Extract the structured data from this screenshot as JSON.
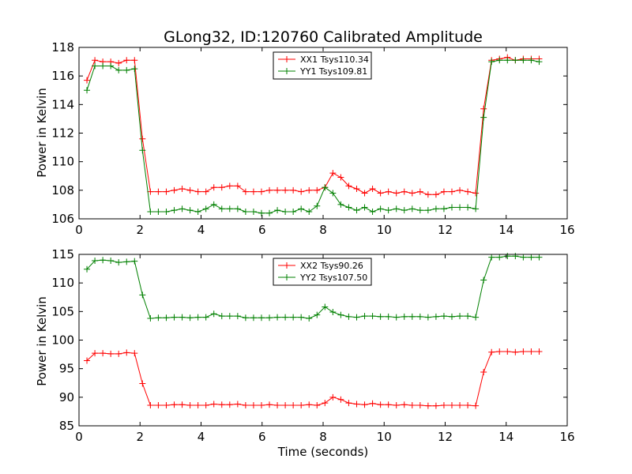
{
  "figure": {
    "title": "GLong32, ID:120760 Calibrated Amplitude",
    "xlabel": "Time (seconds)",
    "ylabel": "Power in Kelvin"
  },
  "colors": {
    "red": "#ff0000",
    "green": "#008000"
  },
  "chart_data": [
    {
      "type": "line",
      "title": "GLong32, ID:120760 Calibrated Amplitude",
      "xlabel": "",
      "ylabel": "Power in Kelvin",
      "xlim": [
        0,
        16
      ],
      "ylim": [
        106,
        118
      ],
      "xticks": [
        0,
        2,
        4,
        6,
        8,
        10,
        12,
        14,
        16
      ],
      "yticks": [
        106,
        108,
        110,
        112,
        114,
        116,
        118
      ],
      "grid": false,
      "legend": "top-center",
      "x": [
        0.26,
        0.52,
        0.78,
        1.04,
        1.3,
        1.56,
        1.82,
        2.08,
        2.34,
        2.6,
        2.86,
        3.12,
        3.38,
        3.64,
        3.9,
        4.16,
        4.42,
        4.68,
        4.94,
        5.2,
        5.46,
        5.72,
        5.98,
        6.24,
        6.5,
        6.76,
        7.02,
        7.28,
        7.54,
        7.8,
        8.06,
        8.32,
        8.58,
        8.84,
        9.1,
        9.36,
        9.62,
        9.88,
        10.14,
        10.4,
        10.66,
        10.92,
        11.18,
        11.44,
        11.7,
        11.96,
        12.22,
        12.48,
        12.74,
        13.0,
        13.26,
        13.52,
        13.78,
        14.04,
        14.3,
        14.56,
        14.82,
        15.08
      ],
      "series": [
        {
          "name": "XX1 Tsys110.34",
          "color": "#ff0000",
          "values": [
            115.7,
            117.1,
            117.0,
            117.0,
            116.9,
            117.1,
            117.1,
            111.6,
            107.9,
            107.9,
            107.9,
            108.0,
            108.1,
            108.0,
            107.9,
            107.9,
            108.2,
            108.2,
            108.3,
            108.3,
            107.9,
            107.9,
            107.9,
            108.0,
            108.0,
            108.0,
            108.0,
            107.9,
            108.0,
            108.0,
            108.2,
            109.2,
            108.9,
            108.3,
            108.1,
            107.8,
            108.1,
            107.8,
            107.9,
            107.8,
            107.9,
            107.8,
            107.9,
            107.7,
            107.7,
            107.9,
            107.9,
            108.0,
            107.9,
            107.8,
            113.7,
            117.1,
            117.2,
            117.3,
            117.1,
            117.2,
            117.2,
            117.2
          ]
        },
        {
          "name": "YY1 Tsys109.81",
          "color": "#008000",
          "values": [
            115.0,
            116.7,
            116.7,
            116.7,
            116.4,
            116.4,
            116.5,
            110.8,
            106.5,
            106.5,
            106.5,
            106.6,
            106.7,
            106.6,
            106.5,
            106.7,
            107.0,
            106.7,
            106.7,
            106.7,
            106.5,
            106.5,
            106.4,
            106.4,
            106.6,
            106.5,
            106.5,
            106.7,
            106.5,
            106.9,
            108.2,
            107.8,
            107.0,
            106.8,
            106.6,
            106.8,
            106.5,
            106.7,
            106.6,
            106.7,
            106.6,
            106.7,
            106.6,
            106.6,
            106.7,
            106.7,
            106.8,
            106.8,
            106.8,
            106.7,
            113.1,
            117.0,
            117.1,
            117.1,
            117.1,
            117.1,
            117.1,
            117.0
          ]
        }
      ]
    },
    {
      "type": "line",
      "title": "",
      "xlabel": "Time (seconds)",
      "ylabel": "Power in Kelvin",
      "xlim": [
        0,
        16
      ],
      "ylim": [
        85,
        115
      ],
      "xticks": [
        0,
        2,
        4,
        6,
        8,
        10,
        12,
        14,
        16
      ],
      "yticks": [
        85,
        90,
        95,
        100,
        105,
        110,
        115
      ],
      "grid": false,
      "legend": "top-center",
      "x": [
        0.26,
        0.52,
        0.78,
        1.04,
        1.3,
        1.56,
        1.82,
        2.08,
        2.34,
        2.6,
        2.86,
        3.12,
        3.38,
        3.64,
        3.9,
        4.16,
        4.42,
        4.68,
        4.94,
        5.2,
        5.46,
        5.72,
        5.98,
        6.24,
        6.5,
        6.76,
        7.02,
        7.28,
        7.54,
        7.8,
        8.06,
        8.32,
        8.58,
        8.84,
        9.1,
        9.36,
        9.62,
        9.88,
        10.14,
        10.4,
        10.66,
        10.92,
        11.18,
        11.44,
        11.7,
        11.96,
        12.22,
        12.48,
        12.74,
        13.0,
        13.26,
        13.52,
        13.78,
        14.04,
        14.3,
        14.56,
        14.82,
        15.08
      ],
      "series": [
        {
          "name": "XX2 Tsys90.26",
          "color": "#ff0000",
          "values": [
            96.4,
            97.7,
            97.7,
            97.6,
            97.6,
            97.8,
            97.7,
            92.4,
            88.6,
            88.6,
            88.6,
            88.7,
            88.7,
            88.6,
            88.6,
            88.6,
            88.8,
            88.7,
            88.7,
            88.8,
            88.6,
            88.6,
            88.6,
            88.7,
            88.6,
            88.6,
            88.6,
            88.6,
            88.7,
            88.6,
            89.0,
            90.0,
            89.6,
            89.0,
            88.8,
            88.7,
            88.9,
            88.7,
            88.7,
            88.6,
            88.7,
            88.6,
            88.6,
            88.5,
            88.5,
            88.6,
            88.6,
            88.6,
            88.6,
            88.5,
            94.4,
            97.9,
            98.0,
            98.0,
            97.9,
            98.0,
            98.0,
            98.0
          ]
        },
        {
          "name": "YY2 Tsys107.50",
          "color": "#008000",
          "values": [
            112.4,
            113.9,
            114.0,
            113.9,
            113.6,
            113.7,
            113.8,
            107.9,
            103.8,
            103.9,
            103.9,
            104.0,
            104.0,
            103.9,
            104.0,
            104.0,
            104.6,
            104.2,
            104.2,
            104.2,
            103.9,
            103.9,
            103.9,
            103.9,
            104.0,
            104.0,
            104.0,
            104.0,
            103.8,
            104.4,
            105.8,
            104.9,
            104.4,
            104.1,
            104.0,
            104.2,
            104.2,
            104.1,
            104.1,
            104.0,
            104.1,
            104.1,
            104.1,
            104.0,
            104.1,
            104.2,
            104.1,
            104.2,
            104.2,
            104.0,
            110.5,
            114.5,
            114.5,
            114.7,
            114.7,
            114.5,
            114.5,
            114.5
          ]
        }
      ]
    }
  ]
}
